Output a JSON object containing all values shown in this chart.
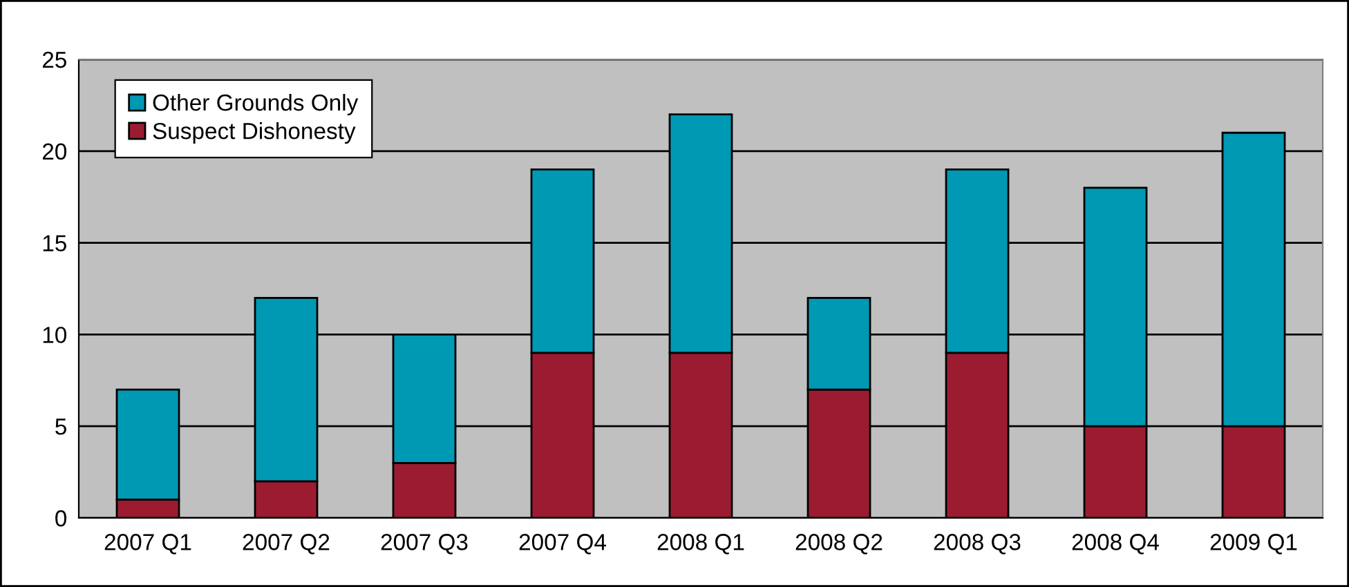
{
  "chart_data": {
    "type": "bar",
    "stacked": true,
    "categories": [
      "2007 Q1",
      "2007 Q2",
      "2007 Q3",
      "2007 Q4",
      "2008 Q1",
      "2008 Q2",
      "2008 Q3",
      "2008 Q4",
      "2009 Q1"
    ],
    "series": [
      {
        "name": "Suspect Dishonesty",
        "color": "#9b1c31",
        "values": [
          1,
          2,
          3,
          9,
          9,
          7,
          9,
          5,
          5
        ]
      },
      {
        "name": "Other Grounds Only",
        "color": "#0099b4",
        "values": [
          6,
          10,
          7,
          10,
          13,
          5,
          10,
          13,
          16
        ]
      }
    ],
    "ylim": [
      0,
      25
    ],
    "yticks": [
      0,
      5,
      10,
      15,
      20,
      25
    ],
    "grid": "y",
    "legend": "top left"
  }
}
